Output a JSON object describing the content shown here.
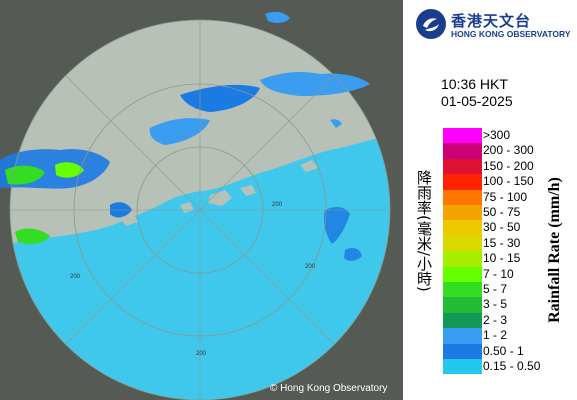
{
  "logo": {
    "name_cn": "香港天文台",
    "name_en": "HONG KONG OBSERVATORY"
  },
  "timestamp": {
    "time": "10:36 HKT",
    "date": "01-05-2025"
  },
  "legend": {
    "title_cn": "降雨率(毫米/小時)",
    "title_en": "Rainfall Rate (mm/h)",
    "entries": [
      {
        "label": ">300",
        "color": "#ff00ff"
      },
      {
        "label": "200 - 300",
        "color": "#cc0077"
      },
      {
        "label": "150 - 200",
        "color": "#dd1133"
      },
      {
        "label": "100 - 150",
        "color": "#ff2200"
      },
      {
        "label": "75 - 100",
        "color": "#ff7700"
      },
      {
        "label": "50 - 75",
        "color": "#f5a300"
      },
      {
        "label": "30 - 50",
        "color": "#eec900"
      },
      {
        "label": "15 - 30",
        "color": "#d9d900"
      },
      {
        "label": "10 - 15",
        "color": "#a8ee00"
      },
      {
        "label": "7 - 10",
        "color": "#66ff00"
      },
      {
        "label": "5 - 7",
        "color": "#33dd22"
      },
      {
        "label": "3 - 5",
        "color": "#22bb33"
      },
      {
        "label": "2 - 3",
        "color": "#119955"
      },
      {
        "label": "1 - 2",
        "color": "#3a9df0"
      },
      {
        "label": "0.50 - 1",
        "color": "#1c7ae3"
      },
      {
        "label": "0.15 - 0.50",
        "color": "#22c8ee"
      }
    ]
  },
  "map": {
    "range_rings": [
      {
        "label": "200"
      },
      {
        "label": "200"
      },
      {
        "label": "200"
      },
      {
        "label": "200"
      }
    ],
    "copyright": "© Hong Kong Observatory"
  }
}
